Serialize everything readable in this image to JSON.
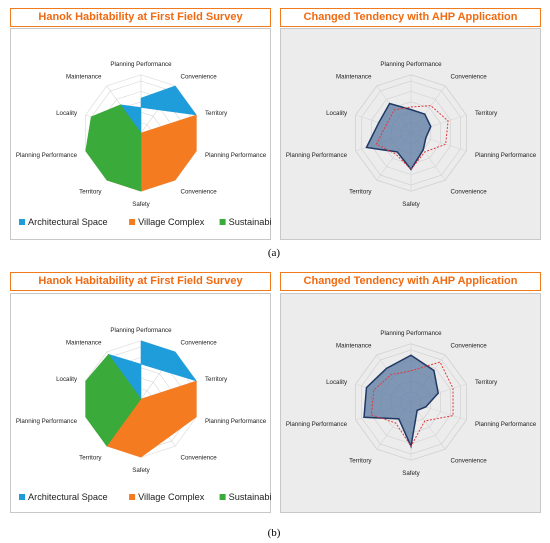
{
  "figure": {
    "subfigure_labels": [
      "(a)",
      "(b)"
    ]
  },
  "colors": {
    "architectural_space": "#1f9ddb",
    "village_complex": "#f47b20",
    "sustainability": "#3aaa3a",
    "ahp_fill": "#5b7aa3",
    "ahp_stroke": "#1f3864",
    "baseline": "#e0393e",
    "title": "#f06a12"
  },
  "chart_data": [
    {
      "type": "radar",
      "title": "Hanok Habitability at First Field Survey",
      "axes": [
        "Planning Performance",
        "Convenience",
        "Territory",
        "Planning Performance",
        "Convenience",
        "Safety",
        "Territory",
        "Planning Performance",
        "Locality",
        "Maintenance"
      ],
      "rmax": 1,
      "series": [
        {
          "name": "Architectural Space",
          "values": [
            0.6,
            1.0,
            1.0,
            0,
            0,
            0,
            0,
            0,
            0,
            0.6
          ]
        },
        {
          "name": "Village Complex",
          "values": [
            0,
            0,
            1.0,
            1.0,
            1.0,
            1.0,
            1.0,
            0,
            0,
            0
          ]
        },
        {
          "name": "Sustainability",
          "values": [
            0,
            0,
            0,
            0,
            0,
            1.0,
            1.0,
            1.0,
            0.9,
            0.6
          ]
        }
      ],
      "legend_position": "bottom"
    },
    {
      "type": "radar",
      "title": "Changed Tendency with AHP Application",
      "axes": [
        "Planning Performance",
        "Convenience",
        "Territory",
        "Planning Performance",
        "Convenience",
        "Safety",
        "Territory",
        "Planning Performance",
        "Locality",
        "Maintenance"
      ],
      "rmax": 1,
      "series": [
        {
          "values": [
            0.45,
            0.45,
            0.4,
            0.3,
            0.4,
            0.7,
            0.45,
            0.9,
            0.65,
            0.7
          ]
        },
        {
          "values": [
            0.5,
            0.65,
            0.75,
            0.7,
            0.45,
            0.7,
            0.5,
            0.7,
            0.5,
            0.55
          ]
        }
      ]
    },
    {
      "type": "radar",
      "title": "Hanok Habitability at First Field Survey",
      "axes": [
        "Planning Performance",
        "Convenience",
        "Territory",
        "Planning Performance",
        "Convenience",
        "Safety",
        "Territory",
        "Planning Performance",
        "Locality",
        "Maintenance"
      ],
      "rmax": 1,
      "series": [
        {
          "name": "Architectural Space",
          "values": [
            1.0,
            1.0,
            1.0,
            0,
            0,
            0,
            0,
            0,
            0,
            0.95
          ]
        },
        {
          "name": "Village Complex",
          "values": [
            0,
            0,
            1.0,
            1.0,
            0,
            1.0,
            1.0,
            0,
            0,
            0
          ]
        },
        {
          "name": "Sustainability",
          "values": [
            0,
            0,
            0,
            0,
            0,
            0,
            1.0,
            1.0,
            1.0,
            0.95
          ]
        }
      ],
      "legend_position": "bottom"
    },
    {
      "type": "radar",
      "title": "Changed Tendency with AHP Application",
      "axes": [
        "Planning Performance",
        "Convenience",
        "Territory",
        "Planning Performance",
        "Convenience",
        "Safety",
        "Territory",
        "Planning Performance",
        "Locality",
        "Maintenance"
      ],
      "rmax": 1,
      "series": [
        {
          "values": [
            0.9,
            0.75,
            0.55,
            0.3,
            0.2,
            0.85,
            0.4,
            0.95,
            0.9,
            0.8
          ]
        },
        {
          "values": [
            0.6,
            0.95,
            0.85,
            0.85,
            0.45,
            0.85,
            0.5,
            0.8,
            0.75,
            0.65
          ]
        }
      ]
    }
  ]
}
